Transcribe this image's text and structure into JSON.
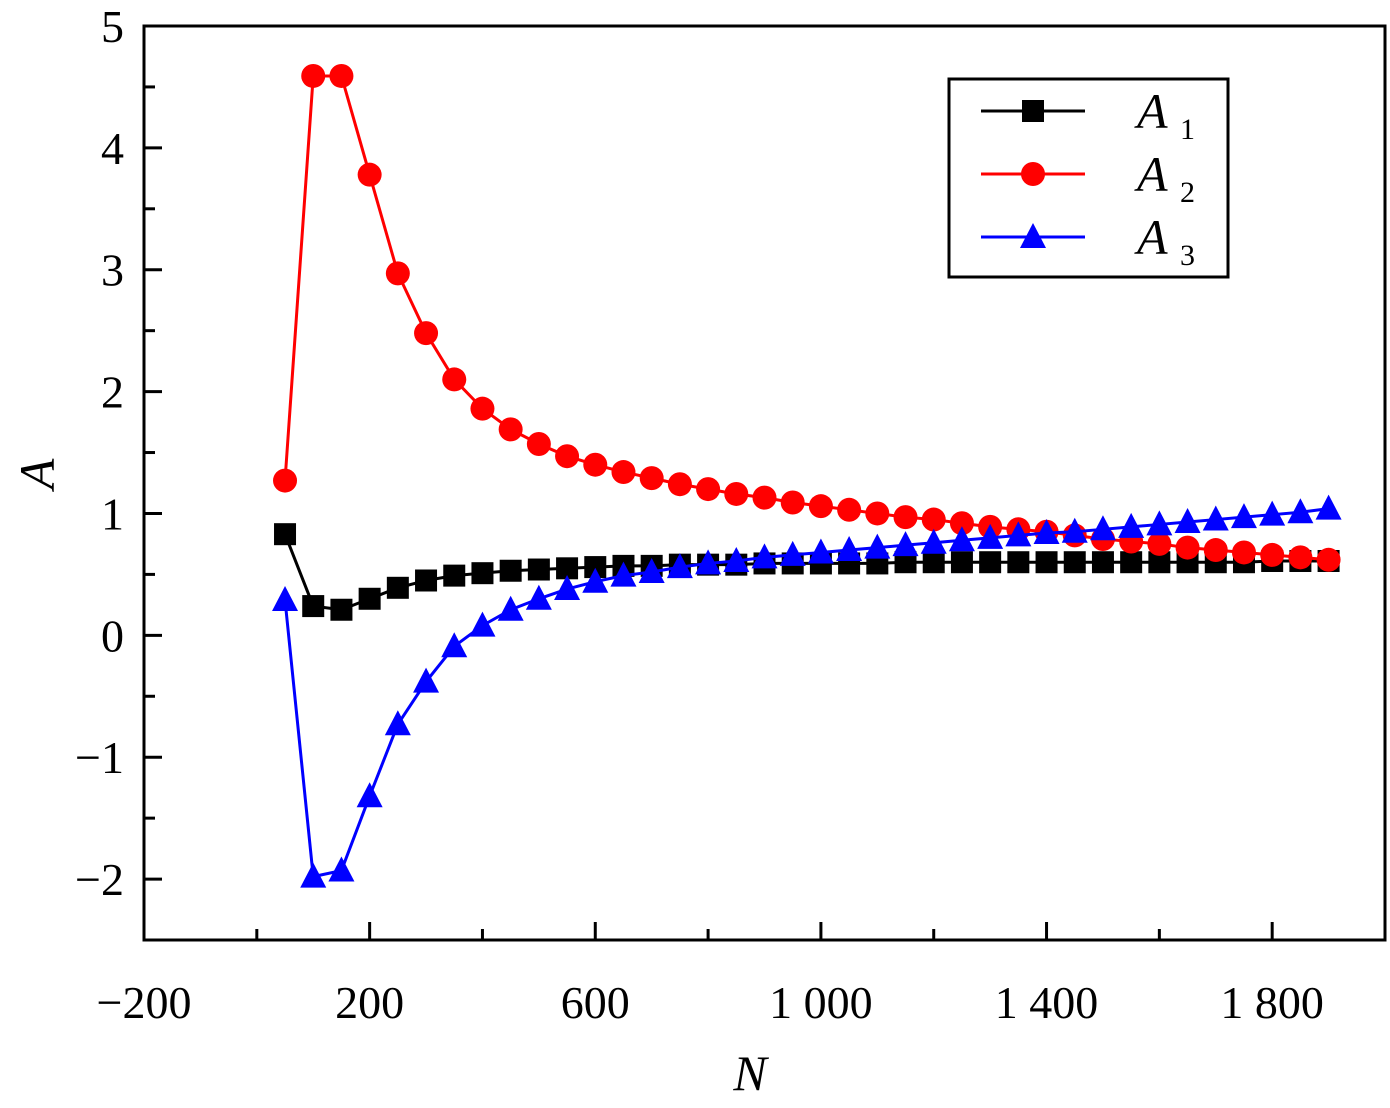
{
  "chart_data": {
    "type": "line",
    "xlabel": "N",
    "ylabel": "A",
    "xlim": [
      -200,
      2000
    ],
    "ylim": [
      -2.5,
      5
    ],
    "x_ticks": [
      {
        "value": -200,
        "label": "−200"
      },
      {
        "value": 200,
        "label": "200"
      },
      {
        "value": 600,
        "label": "600"
      },
      {
        "value": 1000,
        "label": "1 000"
      },
      {
        "value": 1400,
        "label": "1 400"
      },
      {
        "value": 1800,
        "label": "1 800"
      }
    ],
    "y_ticks": [
      {
        "value": 5,
        "label": "5"
      },
      {
        "value": 4,
        "label": "4"
      },
      {
        "value": 3,
        "label": "3"
      },
      {
        "value": 2,
        "label": "2"
      },
      {
        "value": 1,
        "label": "1"
      },
      {
        "value": 0,
        "label": "0"
      },
      {
        "value": -1,
        "label": "−1"
      },
      {
        "value": -2,
        "label": "−2"
      }
    ],
    "grid": false,
    "legend_position": "top-right",
    "x": [
      50,
      100,
      150,
      200,
      250,
      300,
      350,
      400,
      450,
      500,
      550,
      600,
      650,
      700,
      750,
      800,
      850,
      900,
      950,
      1000,
      1050,
      1100,
      1150,
      1200,
      1250,
      1300,
      1350,
      1400,
      1450,
      1500,
      1550,
      1600,
      1650,
      1700,
      1750,
      1800,
      1850,
      1900
    ],
    "series": [
      {
        "name": "A",
        "subscript": "1",
        "color": "#000000",
        "marker": "square",
        "values": [
          0.83,
          0.24,
          0.21,
          0.3,
          0.39,
          0.45,
          0.49,
          0.51,
          0.53,
          0.54,
          0.55,
          0.56,
          0.57,
          0.57,
          0.58,
          0.58,
          0.58,
          0.59,
          0.59,
          0.59,
          0.59,
          0.59,
          0.6,
          0.6,
          0.6,
          0.6,
          0.6,
          0.6,
          0.6,
          0.6,
          0.6,
          0.6,
          0.6,
          0.6,
          0.6,
          0.61,
          0.61,
          0.61
        ]
      },
      {
        "name": "A",
        "subscript": "2",
        "color": "#ff0000",
        "marker": "circle",
        "values": [
          1.27,
          4.59,
          4.59,
          3.78,
          2.97,
          2.48,
          2.1,
          1.86,
          1.69,
          1.57,
          1.47,
          1.4,
          1.34,
          1.29,
          1.24,
          1.2,
          1.16,
          1.13,
          1.09,
          1.06,
          1.03,
          1.0,
          0.97,
          0.95,
          0.92,
          0.89,
          0.87,
          0.85,
          0.82,
          0.79,
          0.77,
          0.75,
          0.72,
          0.7,
          0.68,
          0.66,
          0.64,
          0.62
        ]
      },
      {
        "name": "A",
        "subscript": "3",
        "color": "#0000ff",
        "marker": "triangle",
        "values": [
          0.29,
          -1.98,
          -1.93,
          -1.32,
          -0.73,
          -0.38,
          -0.09,
          0.08,
          0.21,
          0.3,
          0.38,
          0.44,
          0.49,
          0.52,
          0.56,
          0.59,
          0.61,
          0.64,
          0.66,
          0.68,
          0.7,
          0.72,
          0.74,
          0.76,
          0.78,
          0.8,
          0.82,
          0.84,
          0.85,
          0.87,
          0.89,
          0.91,
          0.93,
          0.95,
          0.97,
          0.99,
          1.01,
          1.04
        ]
      }
    ]
  }
}
